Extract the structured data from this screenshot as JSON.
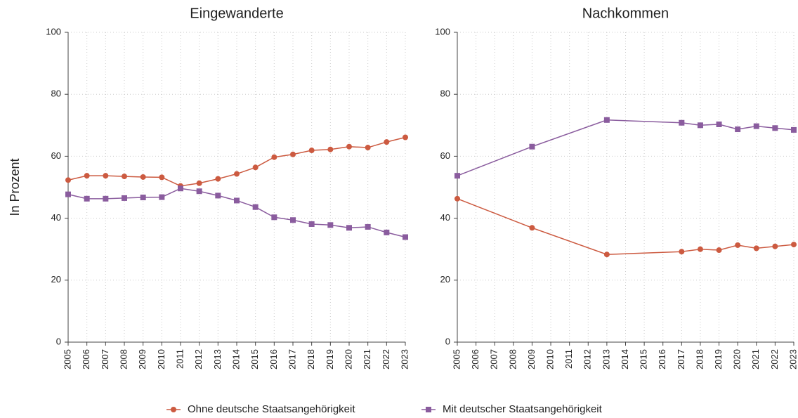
{
  "chart_data": [
    {
      "type": "line",
      "title": "Eingewanderte",
      "ylabel": "In Prozent",
      "x": [
        2005,
        2006,
        2007,
        2008,
        2009,
        2010,
        2011,
        2012,
        2013,
        2014,
        2015,
        2016,
        2017,
        2018,
        2019,
        2020,
        2021,
        2022,
        2023
      ],
      "xlim": [
        2005,
        2023
      ],
      "xticks": [
        2005,
        2006,
        2007,
        2008,
        2009,
        2010,
        2011,
        2012,
        2013,
        2014,
        2015,
        2016,
        2017,
        2018,
        2019,
        2020,
        2021,
        2022,
        2023
      ],
      "ylim": [
        0,
        100
      ],
      "yticks": [
        0,
        20,
        40,
        60,
        80,
        100
      ],
      "grid": true,
      "series": [
        {
          "name": "Ohne deutsche Staatsangehörigkeit",
          "color": "#cc5a40",
          "marker": "circle",
          "values": [
            52.3,
            53.7,
            53.7,
            53.5,
            53.3,
            53.2,
            50.4,
            51.3,
            52.7,
            54.3,
            56.4,
            59.7,
            60.6,
            61.9,
            62.2,
            63.1,
            62.8,
            64.6,
            66.1
          ]
        },
        {
          "name": "Mit deutscher Staatsangehörigkeit",
          "color": "#8a5c9e",
          "marker": "square",
          "values": [
            47.7,
            46.3,
            46.3,
            46.5,
            46.7,
            46.8,
            49.6,
            48.7,
            47.3,
            45.7,
            43.6,
            40.3,
            39.4,
            38.1,
            37.8,
            36.9,
            37.2,
            35.4,
            33.9
          ]
        }
      ]
    },
    {
      "type": "line",
      "title": "Nachkommen",
      "x": [
        2005,
        2009,
        2013,
        2017,
        2018,
        2019,
        2020,
        2021,
        2022,
        2023
      ],
      "xlim": [
        2005,
        2023
      ],
      "xticks": [
        2005,
        2006,
        2007,
        2008,
        2009,
        2010,
        2011,
        2012,
        2013,
        2014,
        2015,
        2016,
        2017,
        2018,
        2019,
        2020,
        2021,
        2022,
        2023
      ],
      "ylim": [
        0,
        100
      ],
      "yticks": [
        0,
        20,
        40,
        60,
        80,
        100
      ],
      "grid": true,
      "series": [
        {
          "name": "Ohne deutsche Staatsangehörigkeit",
          "color": "#cc5a40",
          "marker": "circle",
          "values": [
            46.3,
            36.9,
            28.3,
            29.2,
            30.0,
            29.7,
            31.3,
            30.3,
            30.9,
            31.5
          ]
        },
        {
          "name": "Mit deutscher Staatsangehörigkeit",
          "color": "#8a5c9e",
          "marker": "square",
          "values": [
            53.7,
            63.1,
            71.7,
            70.8,
            70.0,
            70.3,
            68.7,
            69.7,
            69.1,
            68.5
          ]
        }
      ]
    }
  ]
}
